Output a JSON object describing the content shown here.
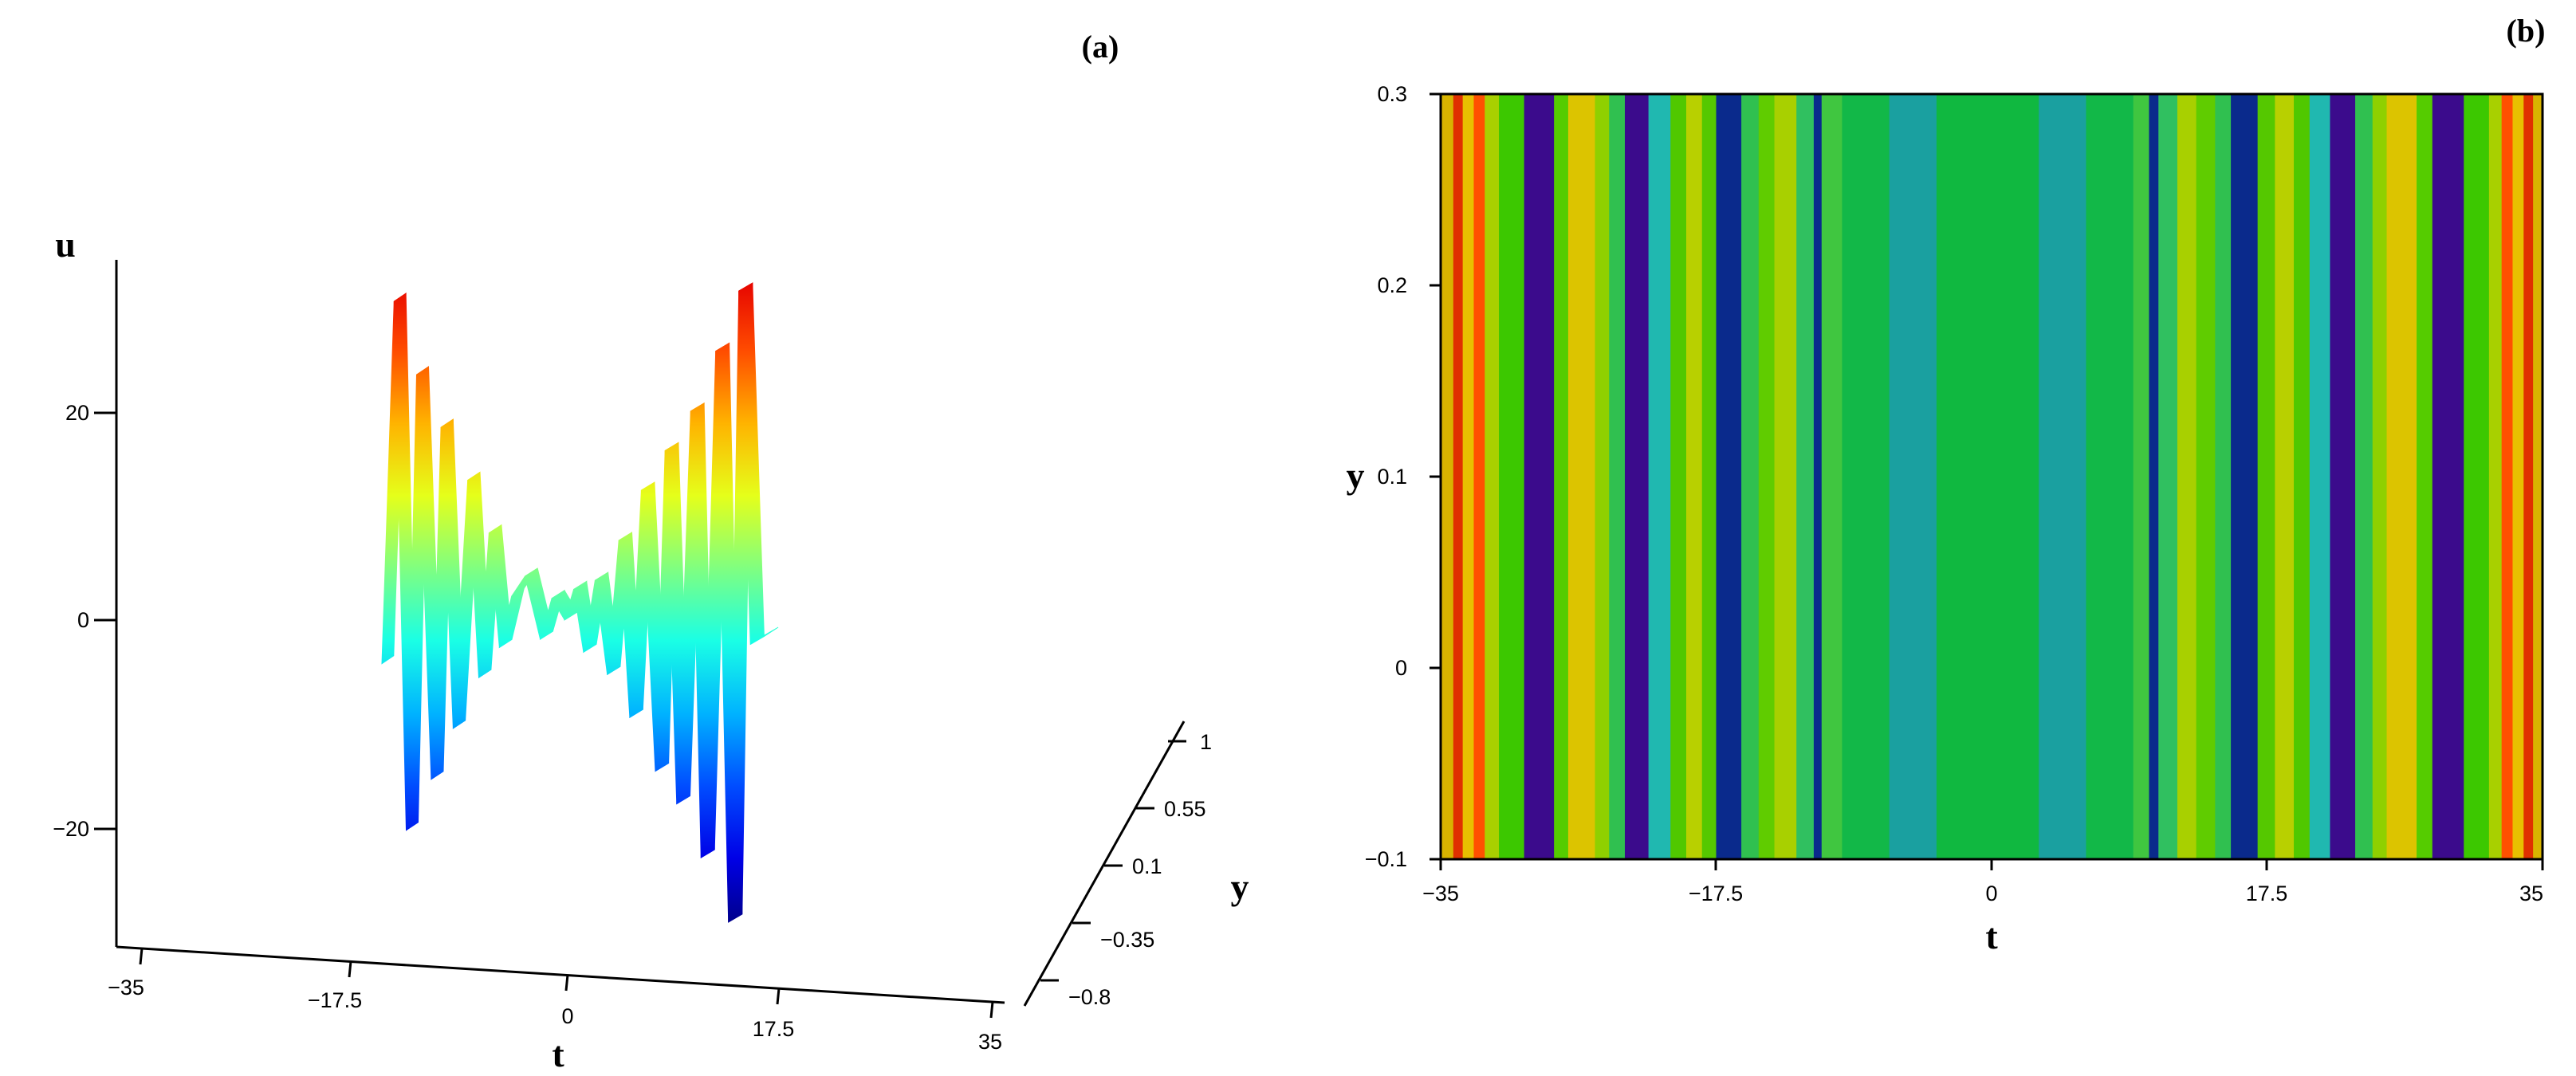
{
  "chart_data": [
    {
      "type": "surface",
      "panel_label": "(a)",
      "xlabel": "t",
      "ylabel": "y",
      "zlabel": "u",
      "xticks": [
        "−35",
        "−17.5",
        "0",
        "17.5",
        "35"
      ],
      "yticks": [
        "−0.8",
        "−0.35",
        "0.1",
        "0.55",
        "1"
      ],
      "zticks": [
        "−20",
        "0",
        "20"
      ],
      "xlim": [
        -35,
        35
      ],
      "ylim": [
        -0.8,
        1
      ],
      "zlim": [
        -30,
        40
      ],
      "colormap": "jet",
      "profile": {
        "t": [
          -30.5,
          -28.5,
          -26.5,
          -24.8,
          -22.4,
          -20.8,
          -18.8,
          -16.4,
          -14.6,
          -12.9,
          -11.2,
          -9.2,
          -7.0,
          -4.5,
          -2.6,
          -0.5,
          1.0,
          2.6,
          4.5,
          6.5,
          8.4,
          10.2,
          12.1,
          14.4,
          16.0,
          17.9,
          20.2,
          21.9,
          24.3,
          26.4,
          28.1,
          30.0,
          32.3
        ],
        "u": [
          -5,
          30,
          -21,
          23,
          -16,
          18,
          -11,
          13,
          -6,
          8,
          -3,
          2,
          4,
          -2,
          2,
          0,
          3,
          -3,
          4,
          -5,
          8,
          -9,
          13,
          -14,
          17,
          -17,
          21,
          -22,
          27,
          -28,
          33,
          -1,
          0
        ]
      }
    },
    {
      "type": "heatmap",
      "panel_label": "(b)",
      "xlabel": "t",
      "ylabel": "y",
      "xticks": [
        "−35",
        "−17.5",
        "0",
        "17.5",
        "35"
      ],
      "yticks": [
        "−0.1",
        "0",
        "0.1",
        "0.2",
        "0.3"
      ],
      "xlim": [
        -35,
        35
      ],
      "ylim": [
        -0.1,
        0.3
      ],
      "colormap": "jet",
      "bands": [
        {
          "t0": -35.0,
          "t1": -34.2,
          "color": "#d8b400"
        },
        {
          "t0": -34.2,
          "t1": -33.6,
          "color": "#e03000"
        },
        {
          "t0": -33.6,
          "t1": -32.9,
          "color": "#e8c000"
        },
        {
          "t0": -32.9,
          "t1": -32.2,
          "color": "#ff5000"
        },
        {
          "t0": -32.2,
          "t1": -31.3,
          "color": "#a8d000"
        },
        {
          "t0": -31.3,
          "t1": -29.7,
          "color": "#3cc800"
        },
        {
          "t0": -29.7,
          "t1": -27.8,
          "color": "#3b0b8c"
        },
        {
          "t0": -27.8,
          "t1": -26.9,
          "color": "#55cc00"
        },
        {
          "t0": -26.9,
          "t1": -25.2,
          "color": "#dcc400"
        },
        {
          "t0": -25.2,
          "t1": -24.3,
          "color": "#8fd000"
        },
        {
          "t0": -24.3,
          "t1": -23.3,
          "color": "#30c050"
        },
        {
          "t0": -23.3,
          "t1": -21.8,
          "color": "#3b0b8c"
        },
        {
          "t0": -21.8,
          "t1": -20.4,
          "color": "#20b8b0"
        },
        {
          "t0": -20.4,
          "t1": -19.4,
          "color": "#50c800"
        },
        {
          "t0": -19.4,
          "t1": -18.4,
          "color": "#b8d000"
        },
        {
          "t0": -18.4,
          "t1": -17.5,
          "color": "#55c800"
        },
        {
          "t0": -17.5,
          "t1": -15.9,
          "color": "#0a2a8c"
        },
        {
          "t0": -15.9,
          "t1": -14.8,
          "color": "#30c050"
        },
        {
          "t0": -14.8,
          "t1": -13.8,
          "color": "#60cc00"
        },
        {
          "t0": -13.8,
          "t1": -12.4,
          "color": "#a8d000"
        },
        {
          "t0": -12.4,
          "t1": -11.3,
          "color": "#30c060"
        },
        {
          "t0": -11.3,
          "t1": -10.8,
          "color": "#0a2a8c"
        },
        {
          "t0": -10.8,
          "t1": -9.5,
          "color": "#40c640"
        },
        {
          "t0": -9.5,
          "t1": -6.5,
          "color": "#12b848"
        },
        {
          "t0": -6.5,
          "t1": -3.5,
          "color": "#1aa0a0"
        },
        {
          "t0": -3.5,
          "t1": 3.0,
          "color": "#10b840"
        },
        {
          "t0": 3.0,
          "t1": 6.0,
          "color": "#1aa0a0"
        },
        {
          "t0": 6.0,
          "t1": 9.0,
          "color": "#12b848"
        },
        {
          "t0": 9.0,
          "t1": 10.0,
          "color": "#40c640"
        },
        {
          "t0": 10.0,
          "t1": 10.6,
          "color": "#0a2a8c"
        },
        {
          "t0": 10.6,
          "t1": 11.8,
          "color": "#30c060"
        },
        {
          "t0": 11.8,
          "t1": 13.0,
          "color": "#a8d000"
        },
        {
          "t0": 13.0,
          "t1": 14.2,
          "color": "#60cc00"
        },
        {
          "t0": 14.2,
          "t1": 15.2,
          "color": "#30c050"
        },
        {
          "t0": 15.2,
          "t1": 16.9,
          "color": "#0a2a8c"
        },
        {
          "t0": 16.9,
          "t1": 18.0,
          "color": "#55c800"
        },
        {
          "t0": 18.0,
          "t1": 19.2,
          "color": "#b8d000"
        },
        {
          "t0": 19.2,
          "t1": 20.2,
          "color": "#50c800"
        },
        {
          "t0": 20.2,
          "t1": 21.5,
          "color": "#20b8b0"
        },
        {
          "t0": 21.5,
          "t1": 23.1,
          "color": "#3b0b8c"
        },
        {
          "t0": 23.1,
          "t1": 24.2,
          "color": "#30c050"
        },
        {
          "t0": 24.2,
          "t1": 25.1,
          "color": "#8fd000"
        },
        {
          "t0": 25.1,
          "t1": 27.0,
          "color": "#dcc400"
        },
        {
          "t0": 27.0,
          "t1": 28.0,
          "color": "#55cc00"
        },
        {
          "t0": 28.0,
          "t1": 30.0,
          "color": "#3b0b8c"
        },
        {
          "t0": 30.0,
          "t1": 31.6,
          "color": "#3cc800"
        },
        {
          "t0": 31.6,
          "t1": 32.4,
          "color": "#a8d000"
        },
        {
          "t0": 32.4,
          "t1": 33.1,
          "color": "#ff5000"
        },
        {
          "t0": 33.1,
          "t1": 33.8,
          "color": "#e8c000"
        },
        {
          "t0": 33.8,
          "t1": 34.4,
          "color": "#e03000"
        },
        {
          "t0": 34.4,
          "t1": 35.0,
          "color": "#d8b400"
        }
      ]
    }
  ]
}
